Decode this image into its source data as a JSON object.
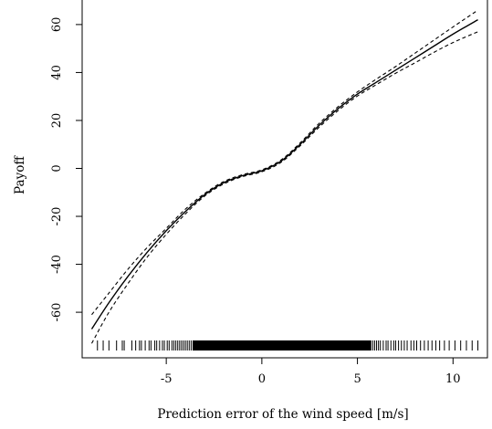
{
  "chart_data": {
    "type": "line",
    "title": "",
    "xlabel": "Prediction error of the wind speed [m/s]",
    "ylabel": "Payoff",
    "xlim": [
      -9.4,
      11.8
    ],
    "ylim": [
      -79,
      71
    ],
    "x_ticks": [
      -5,
      0,
      5,
      10
    ],
    "y_ticks": [
      -60,
      -40,
      -20,
      0,
      20,
      40,
      60
    ],
    "x_tick_labels": [
      "-5",
      "0",
      "5",
      "10"
    ],
    "y_tick_labels": [
      "-60",
      "-40",
      "-20",
      "0",
      "20",
      "40",
      "60"
    ],
    "grid": false,
    "legend": "none",
    "series": [
      {
        "style": "solid",
        "x": [
          -8.9,
          -8,
          -7,
          -6,
          -5,
          -4,
          -3,
          -2,
          -1,
          0,
          1,
          2,
          3,
          4,
          5,
          6,
          7,
          8,
          9,
          10,
          11.3
        ],
        "y": [
          -67,
          -56,
          -45,
          -35,
          -26,
          -18,
          -11,
          -6,
          -3,
          -1,
          3,
          10,
          18,
          25,
          31,
          36,
          41,
          46,
          51,
          56,
          62
        ]
      },
      {
        "style": "dashed",
        "x": [
          -8.9,
          -8,
          -7,
          -6,
          -5,
          -4,
          -3,
          -2,
          -1,
          0,
          1,
          2,
          3,
          4,
          5,
          6,
          7,
          8,
          9,
          10,
          11.3
        ],
        "y": [
          -61,
          -52,
          -42,
          -33,
          -25,
          -17,
          -10.5,
          -5.5,
          -2.6,
          -0.6,
          3.5,
          10.6,
          18.8,
          25.8,
          31.9,
          37.3,
          42.5,
          48,
          53.5,
          59,
          66
        ]
      },
      {
        "style": "dashed",
        "x": [
          -8.9,
          -8,
          -7,
          -6,
          -5,
          -4,
          -3,
          -2,
          -1,
          0,
          1,
          2,
          3,
          4,
          5,
          6,
          7,
          8,
          9,
          10,
          11.3
        ],
        "y": [
          -73,
          -60,
          -48,
          -37,
          -27.5,
          -19,
          -11.6,
          -6.5,
          -3.4,
          -1.4,
          2.5,
          9.4,
          17.2,
          24.2,
          30.2,
          35,
          39.7,
          44,
          48.4,
          52.5,
          57
        ]
      }
    ],
    "rug_x": [
      -8.6,
      -8.3,
      -8.0,
      -7.6,
      -7.3,
      -7.2,
      -6.8,
      -6.6,
      -6.4,
      -6.3,
      -6.1,
      -5.9,
      -5.8,
      -5.6,
      -5.5,
      -5.35,
      -5.2,
      -5.1,
      -4.95,
      -4.85,
      -4.7,
      -4.6,
      -4.5,
      -4.4,
      -4.3,
      -4.2,
      -4.1,
      -4.0,
      -3.9,
      -3.8,
      -3.7,
      -3.6,
      5.7,
      5.8,
      5.9,
      6.0,
      6.1,
      6.2,
      6.35,
      6.5,
      6.6,
      6.75,
      6.9,
      7.0,
      7.15,
      7.3,
      7.45,
      7.6,
      7.8,
      7.95,
      8.1,
      8.3,
      8.5,
      8.7,
      8.9,
      9.1,
      9.3,
      9.55,
      9.8,
      10.1,
      10.4,
      10.7,
      11.0,
      11.3
    ],
    "rug_dense_range": [
      -3.6,
      5.7
    ],
    "colors": {
      "line": "#000000",
      "background": "#ffffff"
    }
  }
}
